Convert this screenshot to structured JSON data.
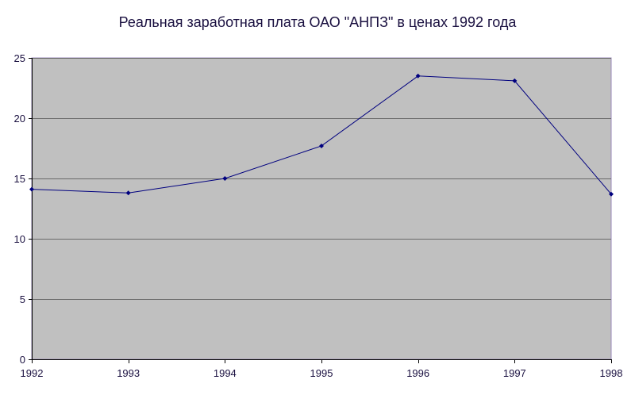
{
  "colors": {
    "plot_background": "#c0c0c0",
    "line": "#00007f",
    "gridline": "#6a6a6a",
    "axis": "#000000",
    "border": "#9a88b8",
    "text": "#1a1040"
  },
  "chart_data": {
    "type": "line",
    "title": "Реальная заработная плата ОАО \"АНПЗ\" в ценах 1992 года",
    "xlabel": "",
    "ylabel": "",
    "categories": [
      "1992",
      "1993",
      "1994",
      "1995",
      "1996",
      "1997",
      "1998"
    ],
    "series": [
      {
        "values": [
          14.1,
          13.8,
          15.0,
          17.7,
          23.5,
          23.1,
          13.7
        ]
      }
    ],
    "ylim": [
      0,
      25
    ],
    "yticks": [
      0,
      5,
      10,
      15,
      20,
      25
    ],
    "grid": true,
    "legend": "none",
    "marker": "diamond"
  }
}
